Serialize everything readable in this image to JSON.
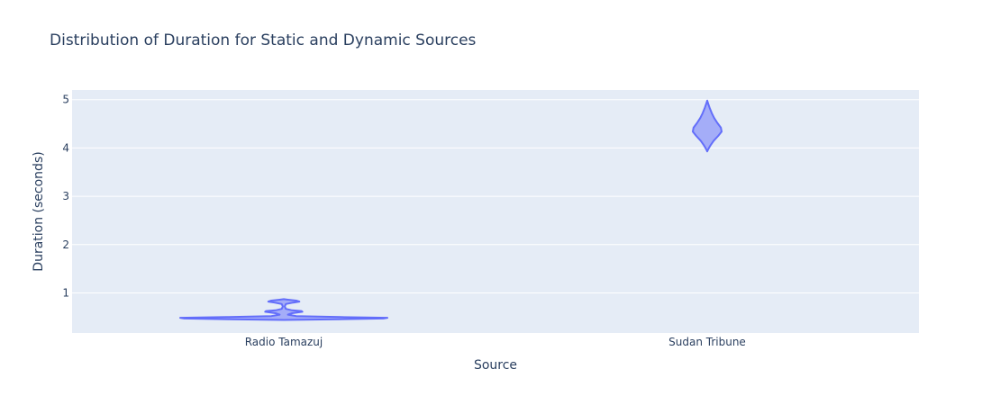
{
  "chart_data": {
    "type": "violin",
    "title": "Distribution of Duration for Static and Dynamic Sources",
    "xlabel": "Source",
    "ylabel": "Duration (seconds)",
    "categories": [
      "Radio Tamazuj",
      "Sudan Tribune"
    ],
    "ylim": [
      0.17,
      5.2
    ],
    "yticks": [
      1,
      2,
      3,
      4,
      5
    ],
    "grid": true,
    "violin_color": "#636efa",
    "plot_bg": "#e5ecf6",
    "series": [
      {
        "category": "Radio Tamazuj",
        "min": 0.44,
        "max": 0.87,
        "profile": [
          [
            0.44,
            0.0
          ],
          [
            0.455,
            0.52
          ],
          [
            0.47,
            0.96
          ],
          [
            0.485,
            1.0
          ],
          [
            0.5,
            0.55
          ],
          [
            0.52,
            0.12
          ],
          [
            0.55,
            0.04
          ],
          [
            0.58,
            0.08
          ],
          [
            0.61,
            0.18
          ],
          [
            0.625,
            0.17
          ],
          [
            0.64,
            0.08
          ],
          [
            0.67,
            0.02
          ],
          [
            0.72,
            0.01
          ],
          [
            0.77,
            0.02
          ],
          [
            0.8,
            0.09
          ],
          [
            0.82,
            0.15
          ],
          [
            0.84,
            0.12
          ],
          [
            0.86,
            0.04
          ],
          [
            0.87,
            0.0
          ]
        ]
      },
      {
        "category": "Sudan Tribune",
        "min": 3.93,
        "max": 4.98,
        "profile": [
          [
            3.93,
            0.0
          ],
          [
            3.98,
            0.08
          ],
          [
            4.05,
            0.22
          ],
          [
            4.15,
            0.45
          ],
          [
            4.25,
            0.76
          ],
          [
            4.34,
            1.0
          ],
          [
            4.42,
            0.95
          ],
          [
            4.52,
            0.7
          ],
          [
            4.62,
            0.48
          ],
          [
            4.72,
            0.32
          ],
          [
            4.82,
            0.18
          ],
          [
            4.92,
            0.06
          ],
          [
            4.98,
            0.0
          ]
        ]
      }
    ]
  }
}
